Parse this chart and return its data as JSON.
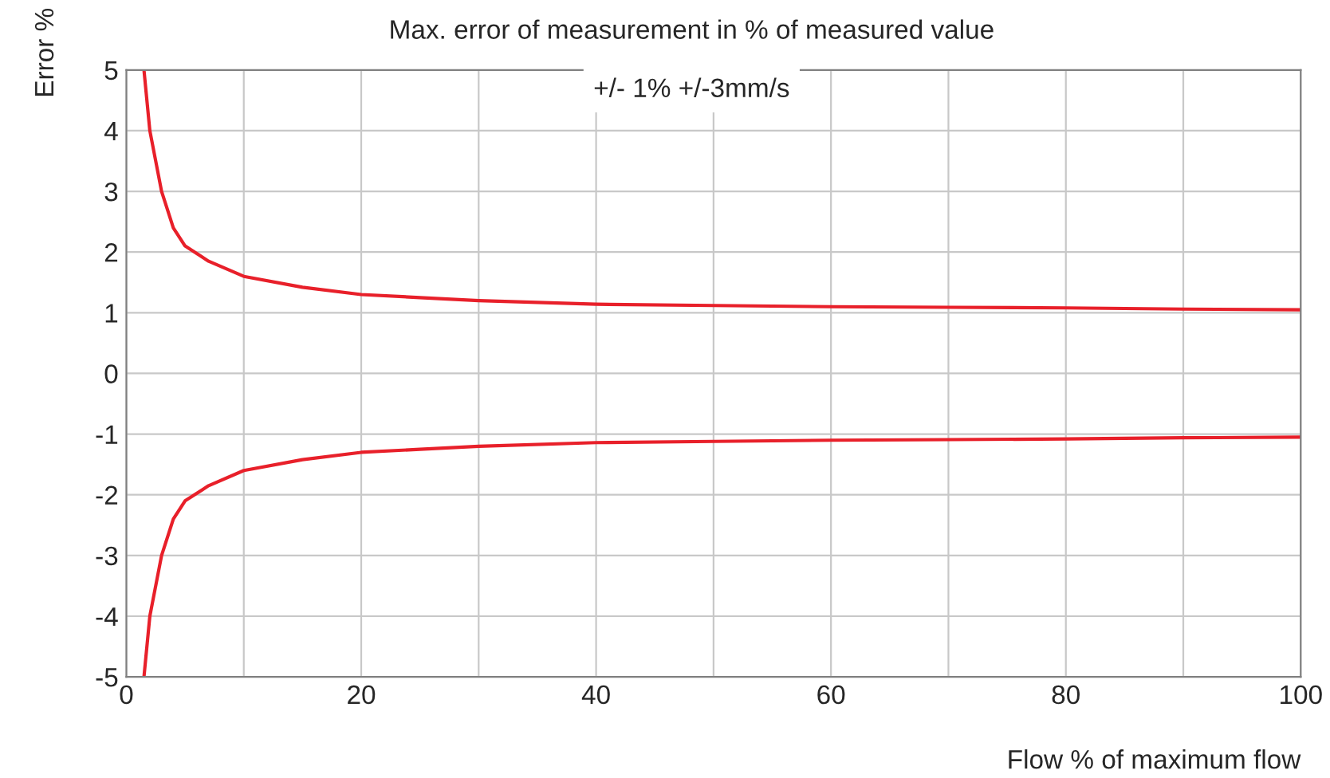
{
  "chart_data": {
    "type": "line",
    "title": "Max. error of measurement in % of measured value",
    "subtitle": "+/- 1% +/-3mm/s",
    "xlabel": "Flow % of maximum flow",
    "ylabel": "Error %",
    "series": [
      {
        "color": "#e8202a",
        "x": [
          1.5,
          2,
          3,
          4,
          5,
          7,
          10,
          15,
          20,
          25,
          30,
          40,
          50,
          60,
          70,
          80,
          90,
          100
        ],
        "values": [
          5,
          4,
          3,
          2.4,
          2.1,
          1.85,
          1.6,
          1.42,
          1.3,
          1.25,
          1.2,
          1.14,
          1.12,
          1.1,
          1.09,
          1.08,
          1.06,
          1.05
        ]
      },
      {
        "color": "#e8202a",
        "x": [
          1.5,
          2,
          3,
          4,
          5,
          7,
          10,
          15,
          20,
          25,
          30,
          40,
          50,
          60,
          70,
          80,
          90,
          100
        ],
        "values": [
          -5,
          -4,
          -3,
          -2.4,
          -2.1,
          -1.85,
          -1.6,
          -1.42,
          -1.3,
          -1.25,
          -1.2,
          -1.14,
          -1.12,
          -1.1,
          -1.09,
          -1.08,
          -1.06,
          -1.05
        ]
      }
    ],
    "xlim": [
      0,
      100
    ],
    "xticks": [
      0,
      {
        "value": 10,
        "label": null
      },
      20,
      {
        "value": 30,
        "label": null
      },
      40,
      {
        "value": 50,
        "label": null
      },
      60,
      {
        "value": 70,
        "label": null
      },
      80,
      {
        "value": 90,
        "label": null
      },
      100
    ],
    "ylim": [
      -5,
      5
    ],
    "yticks": [
      -5,
      -4,
      -3,
      -2,
      -1,
      0,
      1,
      2,
      3,
      4,
      5
    ],
    "grid": true,
    "legend": false,
    "marker": "none",
    "line_style": "solid"
  }
}
